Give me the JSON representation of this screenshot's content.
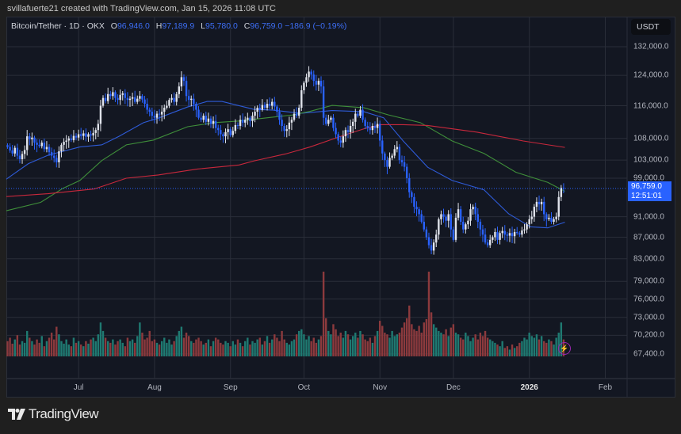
{
  "credit": "svillafuerte21 created with TradingView.com, Jan 15, 2026 11:08 UTC",
  "legend": {
    "symbol": "Bitcoin/Tether · 1D · OKX",
    "o_label": "O",
    "o": "96,946.0",
    "h_label": "H",
    "h": "97,189.9",
    "l_label": "L",
    "l": "95,780.0",
    "c_label": "C",
    "c": "96,759.0",
    "change": "−186.9 (−0.19%)"
  },
  "price_axis": {
    "unit": "USDT",
    "last_price": "96,759.0",
    "countdown": "12:51:01"
  },
  "logo": {
    "text": "TradingView"
  },
  "colors": {
    "up": "#e0e3eb",
    "down": "#2962ff",
    "vol_up": "#1f7a72",
    "vol_down": "#8c3a3d",
    "ma_fast": "#2e5bd8",
    "ma_mid": "#3f8f3a",
    "ma_slow": "#c8283c",
    "background": "#131722",
    "grid": "#2a2e39"
  },
  "icons": {
    "alert": "lightning-bolt-icon",
    "logo": "tradingview-logo-icon"
  },
  "chart_data": {
    "type": "candlestick",
    "interval": "1D",
    "scale": "log",
    "grid": true,
    "ylim": [
      67400,
      132000
    ],
    "y_ticks": [
      "132,000.0",
      "124,000.0",
      "116,000.0",
      "108,000.0",
      "103,000.0",
      "99,000.0",
      "91,000.0",
      "87,000.0",
      "83,000.0",
      "79,000.0",
      "76,000.0",
      "73,000.0",
      "70,200.0",
      "67,400.0"
    ],
    "y_tick_values": [
      132000,
      124000,
      116000,
      108000,
      103000,
      99000,
      91000,
      87000,
      83000,
      79000,
      76000,
      73000,
      70200,
      67400
    ],
    "x_ticks": [
      {
        "label": "Jul",
        "index": 29.5,
        "year": false
      },
      {
        "label": "Aug",
        "index": 60.5,
        "year": false
      },
      {
        "label": "Sep",
        "index": 91.5,
        "year": false
      },
      {
        "label": "Oct",
        "index": 121.5,
        "year": false
      },
      {
        "label": "Nov",
        "index": 152.5,
        "year": false
      },
      {
        "label": "Dec",
        "index": 182.5,
        "year": false
      },
      {
        "label": "2026",
        "index": 213.5,
        "year": true
      },
      {
        "label": "Feb",
        "index": 244.5,
        "year": false
      }
    ],
    "closes_thousands": [
      106.0,
      105.2,
      104.5,
      105.8,
      104.0,
      103.2,
      104.4,
      105.3,
      108.5,
      107.8,
      108.2,
      107.0,
      106.5,
      106.2,
      107.0,
      105.5,
      106.0,
      104.8,
      104.0,
      103.5,
      102.5,
      105.0,
      106.5,
      107.2,
      107.5,
      108.0,
      107.6,
      108.6,
      108.2,
      109.0,
      108.6,
      109.2,
      108.4,
      109.0,
      108.7,
      109.3,
      110.0,
      111.5,
      116.0,
      118.0,
      117.2,
      119.0,
      118.5,
      119.5,
      118.0,
      117.5,
      118.8,
      119.2,
      118.0,
      117.5,
      117.8,
      118.2,
      117.0,
      117.8,
      118.5,
      117.6,
      116.5,
      115.0,
      114.5,
      113.5,
      113.0,
      114.0,
      113.8,
      114.5,
      115.5,
      116.0,
      117.5,
      118.0,
      117.0,
      119.0,
      121.0,
      123.5,
      122.5,
      118.5,
      117.5,
      117.8,
      116.5,
      115.0,
      113.0,
      112.5,
      113.5,
      112.0,
      112.8,
      111.5,
      112.2,
      110.5,
      110.0,
      109.0,
      108.5,
      109.5,
      110.2,
      108.8,
      109.8,
      111.2,
      111.0,
      112.5,
      111.8,
      112.5,
      113.0,
      112.2,
      113.5,
      114.5,
      115.5,
      115.0,
      116.2,
      115.5,
      116.5,
      116.0,
      117.0,
      115.8,
      114.5,
      112.5,
      111.0,
      109.8,
      110.2,
      111.8,
      112.5,
      114.0,
      113.5,
      115.5,
      120.0,
      122.0,
      123.5,
      125.0,
      124.2,
      122.5,
      121.5,
      122.5,
      121.0,
      113.0,
      111.5,
      112.5,
      113.0,
      110.5,
      109.0,
      107.5,
      107.0,
      108.5,
      110.0,
      109.5,
      111.0,
      112.0,
      114.0,
      113.5,
      115.0,
      112.5,
      111.0,
      110.5,
      110.0,
      111.0,
      110.5,
      111.5,
      107.5,
      104.5,
      103.0,
      101.5,
      103.5,
      104.0,
      105.5,
      106.0,
      103.0,
      102.5,
      101.5,
      99.0,
      96.0,
      95.0,
      93.0,
      92.5,
      91.5,
      90.0,
      88.5,
      87.0,
      85.5,
      84.5,
      86.0,
      87.5,
      90.5,
      91.5,
      91.0,
      90.2,
      91.5,
      88.5,
      86.5,
      90.8,
      92.5,
      90.0,
      88.5,
      89.5,
      90.2,
      92.5,
      93.0,
      91.5,
      90.0,
      88.5,
      87.5,
      86.0,
      85.5,
      86.5,
      87.0,
      88.0,
      86.5,
      87.8,
      88.2,
      87.5,
      87.3,
      87.8,
      87.2,
      88.0,
      87.8,
      87.5,
      88.3,
      88.5,
      89.5,
      90.5,
      91.0,
      93.0,
      94.0,
      93.5,
      94.0,
      91.5,
      90.5,
      90.8,
      90.0,
      90.5,
      91.0,
      95.0,
      96.946,
      96.759
    ],
    "volume_relative": [
      18,
      22,
      15,
      20,
      25,
      14,
      18,
      16,
      30,
      22,
      18,
      14,
      20,
      16,
      24,
      12,
      18,
      22,
      28,
      20,
      35,
      26,
      18,
      15,
      20,
      14,
      12,
      22,
      16,
      18,
      14,
      12,
      18,
      15,
      20,
      22,
      18,
      26,
      40,
      30,
      22,
      18,
      16,
      20,
      14,
      18,
      20,
      16,
      12,
      22,
      18,
      20,
      16,
      24,
      40,
      28,
      20,
      22,
      30,
      18,
      20,
      16,
      14,
      18,
      22,
      16,
      20,
      14,
      18,
      24,
      30,
      35,
      22,
      28,
      24,
      18,
      16,
      20,
      22,
      18,
      14,
      16,
      20,
      12,
      18,
      22,
      20,
      16,
      14,
      18,
      16,
      12,
      18,
      14,
      20,
      16,
      12,
      18,
      22,
      14,
      18,
      16,
      20,
      22,
      14,
      18,
      24,
      16,
      20,
      26,
      22,
      18,
      30,
      20,
      16,
      14,
      18,
      20,
      26,
      30,
      32,
      26,
      20,
      24,
      18,
      22,
      16,
      20,
      24,
      100,
      45,
      30,
      26,
      38,
      32,
      24,
      28,
      22,
      30,
      26,
      20,
      24,
      28,
      22,
      30,
      26,
      20,
      18,
      22,
      16,
      24,
      30,
      42,
      36,
      28,
      26,
      22,
      30,
      24,
      26,
      28,
      34,
      40,
      45,
      60,
      38,
      32,
      30,
      36,
      28,
      40,
      44,
      100,
      52,
      38,
      34,
      30,
      28,
      26,
      32,
      24,
      34,
      38,
      28,
      26,
      22,
      20,
      28,
      24,
      18,
      22,
      26,
      20,
      28,
      24,
      30,
      22,
      20,
      18,
      16,
      14,
      12,
      18,
      10,
      12,
      8,
      14,
      10,
      12,
      16,
      18,
      22,
      20,
      28,
      24,
      22,
      26,
      20,
      24,
      18,
      16,
      20,
      18,
      14,
      22,
      28,
      40,
      20
    ],
    "moving_averages": [
      {
        "color_key": "ma_fast",
        "points": [
          [
            0,
            98.8
          ],
          [
            9,
            102.2
          ],
          [
            17,
            104.1
          ],
          [
            30,
            106.0
          ],
          [
            39,
            106.5
          ],
          [
            46,
            108.5
          ],
          [
            56,
            111.8
          ],
          [
            62,
            112.9
          ],
          [
            74,
            115.7
          ],
          [
            82,
            117.1
          ],
          [
            88,
            117.1
          ],
          [
            101,
            115.1
          ],
          [
            109,
            114.9
          ],
          [
            120,
            114.1
          ],
          [
            124,
            114.3
          ],
          [
            133,
            114.8
          ],
          [
            146,
            114.5
          ],
          [
            154,
            113.0
          ],
          [
            162,
            107.4
          ],
          [
            172,
            101.4
          ],
          [
            182,
            98.5
          ],
          [
            195,
            96.5
          ],
          [
            205,
            91.6
          ],
          [
            214,
            89.0
          ],
          [
            221,
            88.8
          ],
          [
            228,
            89.9
          ]
        ]
      },
      {
        "color_key": "ma_mid",
        "points": [
          [
            0,
            92.2
          ],
          [
            14,
            93.9
          ],
          [
            23,
            96.8
          ],
          [
            30,
            98.5
          ],
          [
            39,
            102.9
          ],
          [
            49,
            106.5
          ],
          [
            60,
            107.6
          ],
          [
            74,
            110.8
          ],
          [
            85,
            111.8
          ],
          [
            95,
            112.2
          ],
          [
            108,
            113.1
          ],
          [
            117,
            113.7
          ],
          [
            124,
            114.6
          ],
          [
            133,
            116.1
          ],
          [
            146,
            115.5
          ],
          [
            156,
            113.7
          ],
          [
            169,
            111.8
          ],
          [
            182,
            107.4
          ],
          [
            195,
            104.5
          ],
          [
            208,
            100.3
          ],
          [
            221,
            98.1
          ],
          [
            228,
            96.2
          ]
        ]
      },
      {
        "color_key": "ma_slow",
        "points": [
          [
            0,
            95.1
          ],
          [
            17,
            95.7
          ],
          [
            36,
            96.7
          ],
          [
            49,
            99.0
          ],
          [
            62,
            99.7
          ],
          [
            78,
            101.0
          ],
          [
            95,
            101.9
          ],
          [
            101,
            102.8
          ],
          [
            114,
            104.4
          ],
          [
            124,
            106.0
          ],
          [
            137,
            108.6
          ],
          [
            146,
            110.3
          ],
          [
            153,
            111.3
          ],
          [
            162,
            111.3
          ],
          [
            172,
            111.1
          ],
          [
            192,
            109.5
          ],
          [
            211,
            107.4
          ],
          [
            228,
            105.9
          ]
        ]
      }
    ]
  }
}
